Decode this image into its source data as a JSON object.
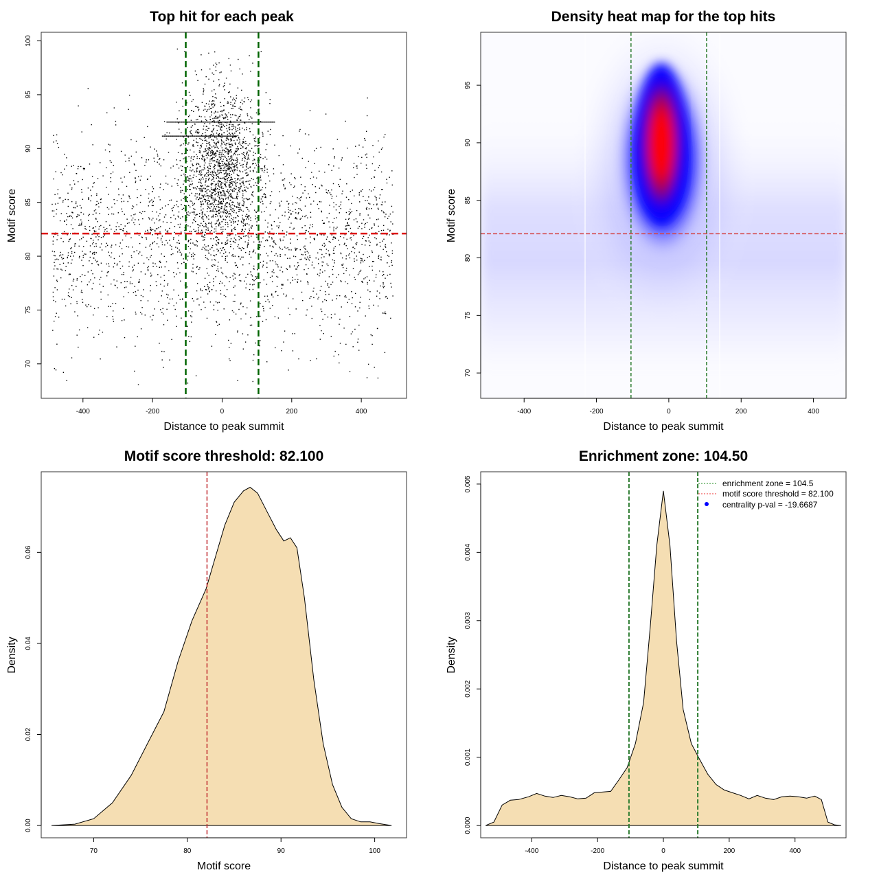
{
  "chart_data": [
    {
      "type": "scatter",
      "title": "Top hit for each peak",
      "xlabel": "Distance to peak summit",
      "ylabel": "Motif score",
      "xlim": [
        -520,
        530
      ],
      "ylim": [
        66.8,
        100.8
      ],
      "xticks": [
        -400,
        -200,
        0,
        200,
        400
      ],
      "yticks": [
        70,
        75,
        80,
        85,
        90,
        95,
        100
      ],
      "vlines": [
        -104.5,
        104.5
      ],
      "hline": 82.1,
      "vline_color": "#006400",
      "hline_color": "#dd1111",
      "point_color": "#000000",
      "points_description_counts": {
        "background_uniform": 2200,
        "central_cluster": 1700
      }
    },
    {
      "type": "heatmap",
      "title": "Density heat map for the top hits",
      "xlabel": "Distance to peak summit",
      "ylabel": "Motif score",
      "xlim": [
        -520,
        490
      ],
      "ylim": [
        67.8,
        99.6
      ],
      "xticks": [
        -400,
        -200,
        0,
        200,
        400
      ],
      "yticks": [
        70,
        75,
        80,
        85,
        90,
        95
      ],
      "vlines": [
        -104.5,
        104.5
      ],
      "hline": 82.1,
      "colors": [
        "#ffffff",
        "#0000ff",
        "#ff0000"
      ],
      "density_peak": {
        "x": 0,
        "y": 89.5
      }
    },
    {
      "type": "area",
      "title": "Motif score threshold: 82.100",
      "xlabel": "Motif score",
      "ylabel": "Density",
      "xlim": [
        64.4,
        103.4
      ],
      "ylim": [
        -0.0027,
        0.0777
      ],
      "xticks": [
        70,
        80,
        90,
        100
      ],
      "yticks": [
        0.0,
        0.02,
        0.04,
        0.06
      ],
      "vline": 82.1,
      "fill": "#f5deb3",
      "x": [
        65.5,
        68,
        70,
        72,
        74,
        76,
        77.5,
        79,
        80.5,
        82,
        83,
        84,
        85,
        86,
        86.7,
        87.5,
        88.5,
        89.5,
        90.3,
        91,
        91.7,
        92.5,
        93.5,
        94.5,
        95.5,
        96.5,
        97.5,
        98.5,
        99.5,
        100.5,
        101.8
      ],
      "y": [
        0.0,
        0.0003,
        0.0015,
        0.005,
        0.011,
        0.019,
        0.025,
        0.036,
        0.045,
        0.052,
        0.059,
        0.066,
        0.071,
        0.0735,
        0.0743,
        0.073,
        0.069,
        0.065,
        0.0625,
        0.0632,
        0.061,
        0.05,
        0.032,
        0.018,
        0.009,
        0.004,
        0.0015,
        0.0008,
        0.0008,
        0.0004,
        0.0
      ]
    },
    {
      "type": "area",
      "title": "Enrichment zone: 104.50",
      "xlabel": "Distance to peak summit",
      "ylabel": "Density",
      "xlim": [
        -555,
        555
      ],
      "ylim": [
        -0.00018,
        0.00518
      ],
      "xticks": [
        -400,
        -200,
        0,
        200,
        400
      ],
      "yticks": [
        0.0,
        0.001,
        0.002,
        0.003,
        0.004,
        0.005
      ],
      "vlines": [
        -104.5,
        104.5
      ],
      "fill": "#f5deb3",
      "legend_position": "top-right",
      "legend": [
        {
          "label": "enrichment zone = 104.5",
          "style": "dotted",
          "color": "#228b22"
        },
        {
          "label": "motif score threshold = 82.100",
          "style": "dotted",
          "color": "#ee3333"
        },
        {
          "label": "centrality p-val = -19.6687",
          "style": "point",
          "color": "#0000ff"
        }
      ],
      "x": [
        -540,
        -515,
        -490,
        -465,
        -440,
        -410,
        -385,
        -360,
        -335,
        -310,
        -285,
        -260,
        -235,
        -210,
        -185,
        -160,
        -135,
        -110,
        -85,
        -60,
        -40,
        -20,
        0,
        20,
        40,
        60,
        85,
        110,
        135,
        160,
        185,
        210,
        235,
        260,
        285,
        310,
        335,
        360,
        385,
        410,
        435,
        460,
        480,
        500,
        520,
        540
      ],
      "y": [
        0.0,
        5e-05,
        0.0003,
        0.00037,
        0.00038,
        0.00042,
        0.00047,
        0.00043,
        0.00041,
        0.00044,
        0.00042,
        0.00039,
        0.0004,
        0.00048,
        0.00049,
        0.0005,
        0.00067,
        0.00085,
        0.0012,
        0.0018,
        0.0029,
        0.0041,
        0.0049,
        0.0041,
        0.0027,
        0.0017,
        0.0012,
        0.00097,
        0.00075,
        0.0006,
        0.00052,
        0.00048,
        0.00044,
        0.00039,
        0.00044,
        0.0004,
        0.00038,
        0.00042,
        0.00043,
        0.00042,
        0.0004,
        0.00043,
        0.00038,
        5e-05,
        1e-05,
        0.0
      ]
    }
  ]
}
